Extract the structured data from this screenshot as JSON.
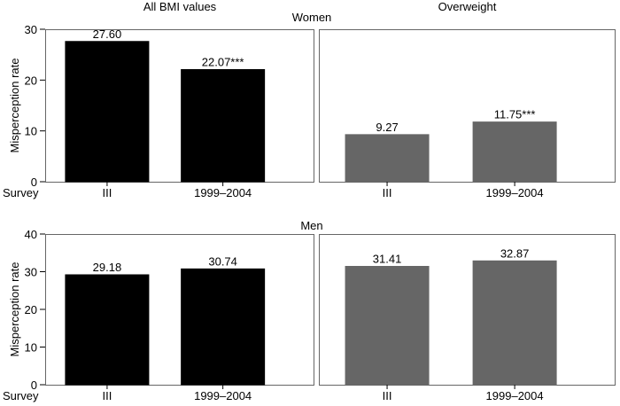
{
  "chart_data": {
    "type": "bar",
    "column_titles": [
      "All BMI values",
      "Overweight"
    ],
    "x_axis_title": "Survey",
    "y_axis_label": "Misperception rate",
    "categories": [
      "III",
      "1999–2004"
    ],
    "colors": {
      "all_bmi": "#000000",
      "overweight": "#666666"
    },
    "panels": [
      {
        "row": "Women",
        "ylim": [
          0,
          30
        ],
        "yticks": [
          0,
          10,
          20,
          30
        ],
        "groups": [
          {
            "column": "All BMI values",
            "values": [
              27.6,
              22.07
            ],
            "labels": [
              "27.60",
              "22.07***"
            ],
            "color": "#000000"
          },
          {
            "column": "Overweight",
            "values": [
              9.27,
              11.75
            ],
            "labels": [
              "9.27",
              "11.75***"
            ],
            "color": "#666666"
          }
        ]
      },
      {
        "row": "Men",
        "ylim": [
          0,
          40
        ],
        "yticks": [
          0,
          10,
          20,
          30,
          40
        ],
        "groups": [
          {
            "column": "All BMI values",
            "values": [
              29.18,
              30.74
            ],
            "labels": [
              "29.18",
              "30.74"
            ],
            "color": "#000000"
          },
          {
            "column": "Overweight",
            "values": [
              31.41,
              32.87
            ],
            "labels": [
              "31.41",
              "32.87"
            ],
            "color": "#666666"
          }
        ]
      }
    ]
  }
}
